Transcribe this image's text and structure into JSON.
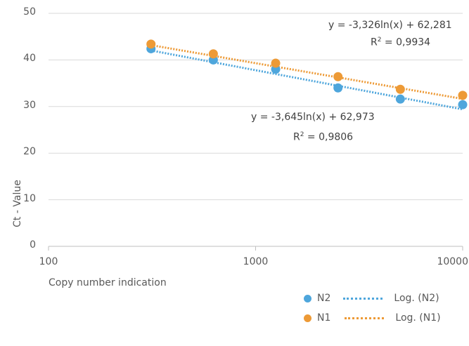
{
  "chart_data": {
    "type": "scatter",
    "x_scale": "log",
    "xlabel": "Copy number indication",
    "ylabel": "Ct - Value",
    "xlim": [
      100,
      10000
    ],
    "ylim": [
      0,
      50
    ],
    "x_ticks": [
      "100",
      "1000",
      "10000"
    ],
    "y_ticks": [
      "0",
      "10",
      "20",
      "30",
      "40",
      "50"
    ],
    "grid": "horizontal",
    "legend_position": "bottom-right",
    "series": [
      {
        "name": "N2",
        "color": "#4ea6dc",
        "x": [
          312.5,
          625,
          1250,
          2500,
          5000,
          10000
        ],
        "y": [
          42.4,
          40.0,
          38.0,
          34.0,
          31.6,
          30.4
        ],
        "trendline": {
          "name": "Log. (N2)",
          "type": "log",
          "a": -3.645,
          "b": 62.973,
          "equation": "y = -3,645ln(x) + 62,973",
          "r2_prefix": "R",
          "r2_text": " = 0,9806"
        }
      },
      {
        "name": "N1",
        "color": "#ed9a36",
        "x": [
          312.5,
          625,
          1250,
          2500,
          5000,
          10000
        ],
        "y": [
          43.4,
          41.3,
          39.3,
          36.4,
          33.7,
          32.4
        ],
        "trendline": {
          "name": "Log. (N1)",
          "type": "log",
          "a": -3.326,
          "b": 62.281,
          "equation": "y = -3,326ln(x) + 62,281",
          "r2_prefix": "R",
          "r2_text": " = 0,9934"
        }
      }
    ]
  }
}
